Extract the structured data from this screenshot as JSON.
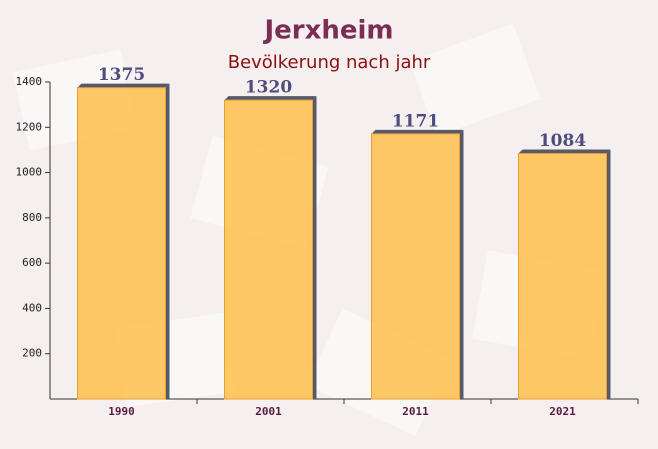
{
  "chart_data": {
    "type": "bar",
    "title": "Jerxheim",
    "subtitle": "Bevölkerung nach jahr",
    "categories": [
      "1990",
      "2001",
      "2011",
      "2021"
    ],
    "values": [
      1375,
      1320,
      1171,
      1084
    ],
    "color": "#ffc04d",
    "ylim": [
      0,
      1400
    ],
    "yticks": [
      200,
      400,
      600,
      800,
      1000,
      1200,
      1400
    ]
  }
}
